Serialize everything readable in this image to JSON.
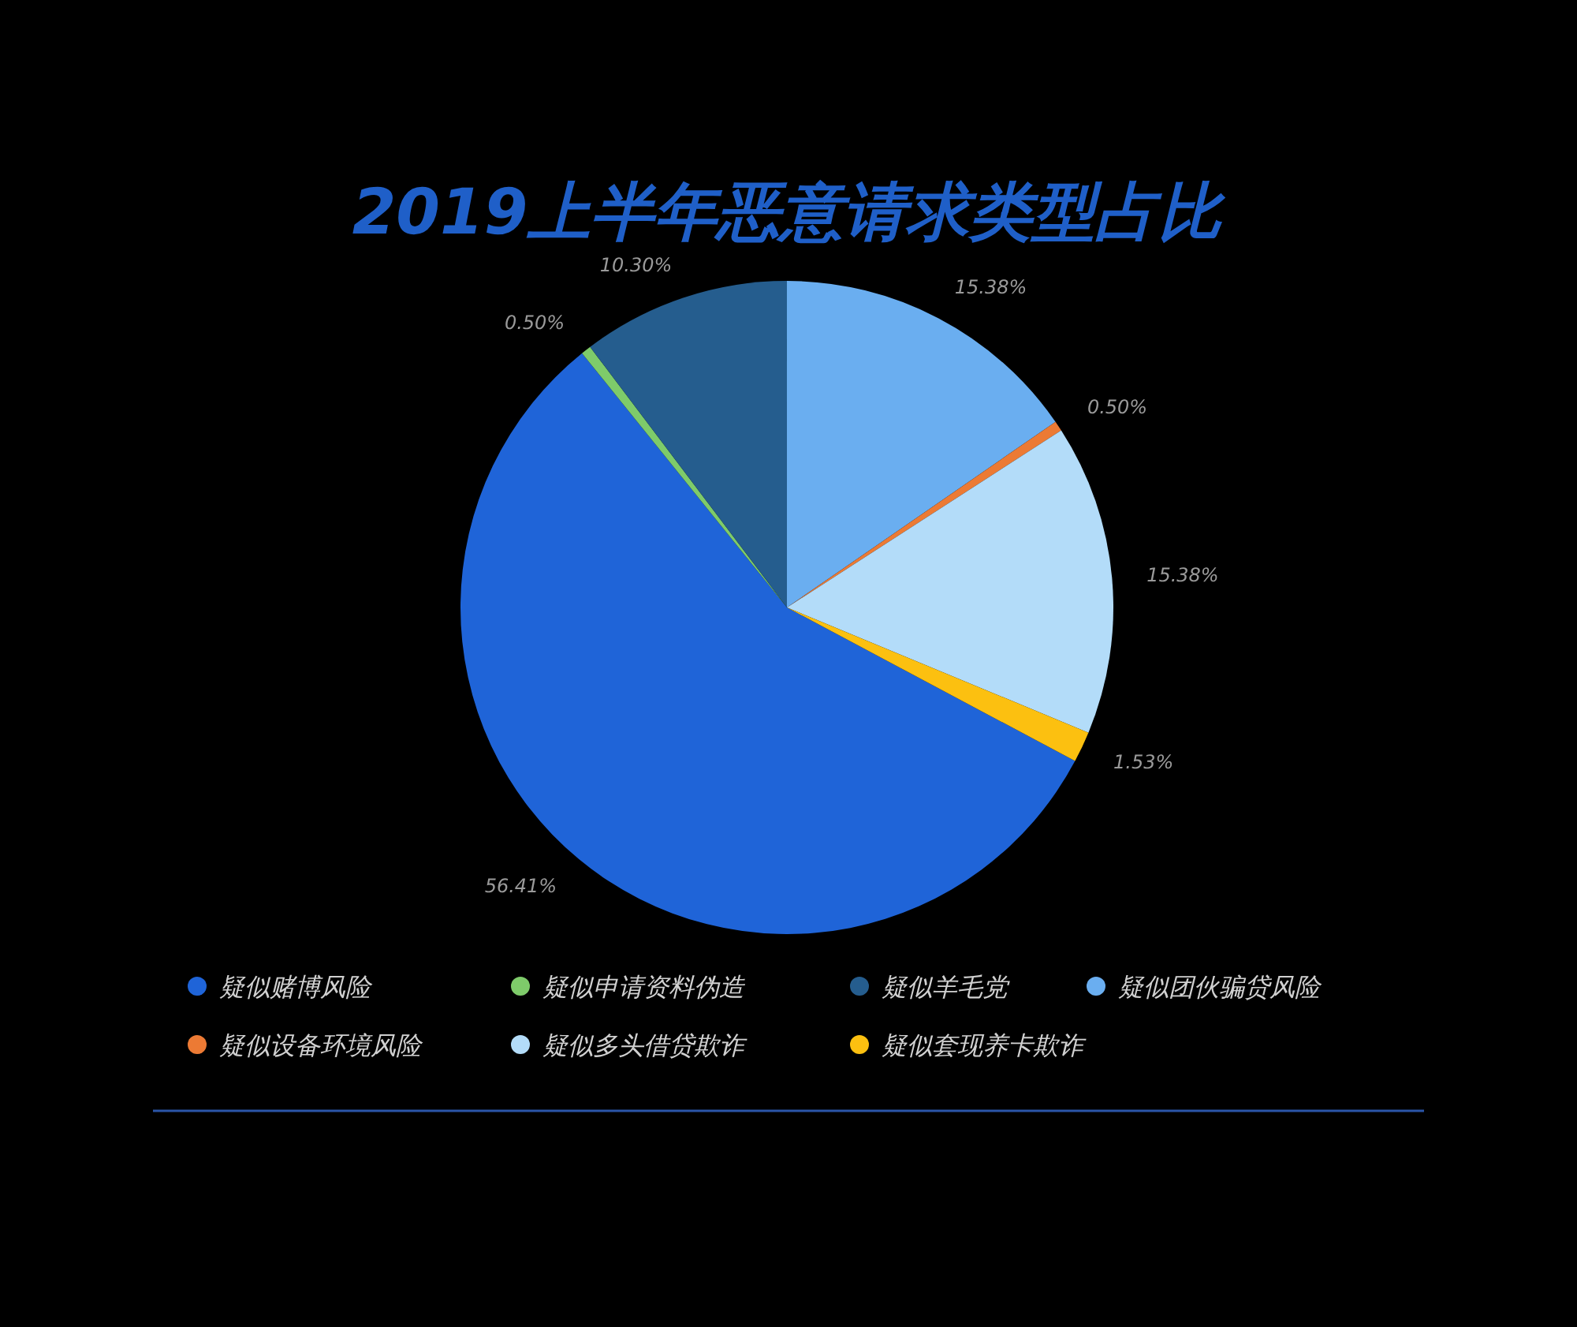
{
  "chart_data": {
    "type": "pie",
    "title": "2019上半年恶意请求类型占比",
    "categories": [
      "疑似赌博风险",
      "疑似申请资料伪造",
      "疑似羊毛党",
      "疑似团伙骗贷风险",
      "疑似设备环境风险",
      "疑似多头借贷欺诈",
      "疑似套现养卡欺诈"
    ],
    "values": [
      56.41,
      0.5,
      10.3,
      15.38,
      0.5,
      15.38,
      1.53
    ],
    "value_labels": [
      "56.41%",
      "0.50%",
      "10.30%",
      "15.38%",
      "0.50%",
      "15.38%",
      "1.53%"
    ],
    "colors": [
      "#1f64d8",
      "#7ecb6a",
      "#255d8e",
      "#6aaef0",
      "#ec7a34",
      "#b3dcf9",
      "#fcc010"
    ],
    "legend": "bottom"
  }
}
